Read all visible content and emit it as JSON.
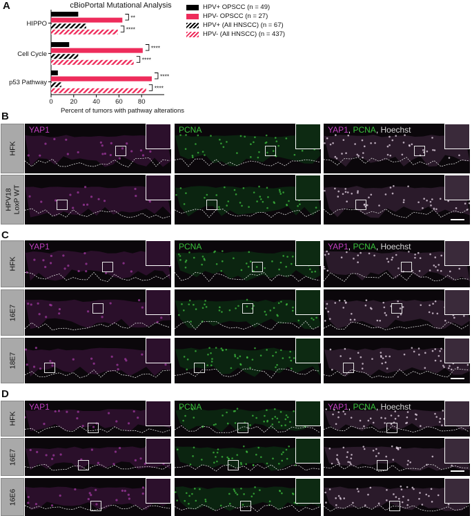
{
  "panels": {
    "A": "A",
    "B": "B",
    "C": "C",
    "D": "D"
  },
  "chart_data": {
    "type": "bar",
    "title": "cBioPortal Mutational Analysis",
    "xlabel": "Percent of tumors with pathway alterations",
    "ylabel": "",
    "xlim": [
      0,
      100
    ],
    "xticks": [
      "0",
      "20",
      "40",
      "60",
      "80"
    ],
    "categories": [
      "HIPPO",
      "Cell Cycle",
      "p53 Pathway"
    ],
    "series": [
      {
        "name": "HPV+ OPSCC (n = 49)",
        "color": "#000000",
        "pattern": "solid",
        "values": [
          24,
          16,
          6
        ]
      },
      {
        "name": "HPV- OPSCC (n = 27)",
        "color": "#ee2c5b",
        "pattern": "solid",
        "values": [
          63,
          81,
          89
        ]
      },
      {
        "name": "HPV+ (All HNSCC) (n = 67)",
        "color": "#000000",
        "pattern": "hatch",
        "values": [
          31,
          24,
          9
        ]
      },
      {
        "name": "HPV- (All HNSCC) (n = 437)",
        "color": "#ee2c5b",
        "pattern": "hatch",
        "values": [
          59,
          73,
          84
        ]
      }
    ],
    "significance": [
      [
        "**",
        "****"
      ],
      [
        "****",
        "****"
      ],
      [
        "****",
        "****"
      ]
    ]
  },
  "micrographs": {
    "colors": {
      "yap1": "#c040c0",
      "pcna": "#39c43c",
      "hoechst": "#d9d9d9",
      "comma": "#ffffff"
    },
    "channel_labels": {
      "yap1": "YAP1",
      "pcna": "PCNA",
      "merge_yap1": "YAP1",
      "merge_sep": ",",
      "merge_pcna": "PCNA",
      "merge_hoechst": "Hoechst"
    },
    "B_rows": [
      "HFK",
      "HPV18 LoxP WT"
    ],
    "C_rows": [
      "HFK",
      "16E7",
      "18E7"
    ],
    "D_rows": [
      "HFK",
      "16E7",
      "16E6"
    ]
  }
}
